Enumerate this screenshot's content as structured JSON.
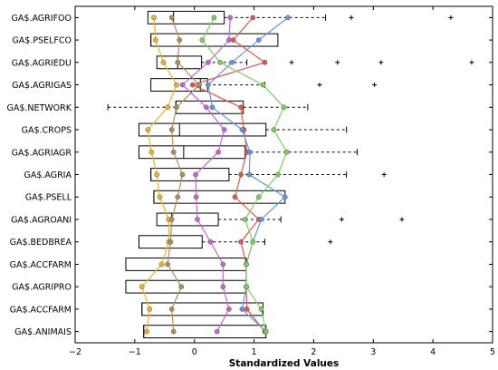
{
  "chart_data": {
    "type": "boxplot",
    "title": "",
    "xlabel": "Standardized Values",
    "ylabel": "",
    "xlim": [
      -2,
      5
    ],
    "xticks": [
      -2,
      -1,
      0,
      1,
      2,
      3,
      4,
      5
    ],
    "grid": false,
    "legend": "none",
    "categories": [
      "GA$.AGRIFOO",
      "GA$.PSELFCO",
      "GA$.AGRIEDU",
      "GA$.AGRIGAS",
      "GA$.NETWORK",
      "GA$.CROPS",
      "GA$.AGRIAGR",
      "GA$.AGRIA",
      "GA$.PSELL",
      "GA$.AGROANI",
      "GA$.BEDBREA",
      "GA$.ACCFARM",
      "GA$.AGRIPRO",
      "GA$.ACCFARM",
      "GA$.ANIMAIS"
    ],
    "boxes": [
      {
        "q1": -0.78,
        "median": -0.35,
        "q3": 0.5,
        "whisker_low": -0.78,
        "whisker_high": 2.2,
        "outliers": [
          2.63,
          4.3
        ]
      },
      {
        "q1": -0.73,
        "median": -0.73,
        "q3": 1.4,
        "whisker_low": -0.73,
        "whisker_high": 1.4,
        "outliers": []
      },
      {
        "q1": -0.63,
        "median": -0.28,
        "q3": 0.12,
        "whisker_low": -0.63,
        "whisker_high": 0.88,
        "outliers": [
          1.63,
          2.4,
          3.13,
          4.65
        ]
      },
      {
        "q1": -0.73,
        "median": 0.1,
        "q3": 0.22,
        "whisker_low": -0.73,
        "whisker_high": 1.18,
        "outliers": [
          2.1,
          3.02
        ]
      },
      {
        "q1": -0.31,
        "median": -0.31,
        "q3": 0.82,
        "whisker_low": -1.45,
        "whisker_high": 1.9,
        "outliers": []
      },
      {
        "q1": -0.93,
        "median": -0.25,
        "q3": 1.2,
        "whisker_low": -0.93,
        "whisker_high": 2.55,
        "outliers": []
      },
      {
        "q1": -0.93,
        "median": -0.18,
        "q3": 0.85,
        "whisker_low": -0.93,
        "whisker_high": 2.73,
        "outliers": []
      },
      {
        "q1": -0.73,
        "median": -0.73,
        "q3": 0.58,
        "whisker_low": -0.73,
        "whisker_high": 2.55,
        "outliers": [
          3.18
        ]
      },
      {
        "q1": -0.68,
        "median": -0.68,
        "q3": 1.52,
        "whisker_low": -0.68,
        "whisker_high": 1.52,
        "outliers": []
      },
      {
        "q1": -0.63,
        "median": -0.38,
        "q3": 0.4,
        "whisker_low": -0.63,
        "whisker_high": 1.45,
        "outliers": [
          2.47,
          3.48
        ]
      },
      {
        "q1": -0.93,
        "median": -0.93,
        "q3": 0.13,
        "whisker_low": -0.93,
        "whisker_high": 1.18,
        "outliers": [
          2.28
        ]
      },
      {
        "q1": -1.15,
        "median": -1.15,
        "q3": 0.87,
        "whisker_low": -1.15,
        "whisker_high": 0.87,
        "outliers": []
      },
      {
        "q1": -1.15,
        "median": -1.15,
        "q3": 0.87,
        "whisker_low": -1.15,
        "whisker_high": 0.87,
        "outliers": []
      },
      {
        "q1": -0.88,
        "median": -0.88,
        "q3": 1.15,
        "whisker_low": -0.88,
        "whisker_high": 1.15,
        "outliers": []
      },
      {
        "q1": -0.85,
        "median": -0.85,
        "q3": 1.2,
        "whisker_low": -0.85,
        "whisker_high": 1.2,
        "outliers": []
      }
    ],
    "series": [
      {
        "color": "#f0b323",
        "values": [
          -0.68,
          -0.65,
          -0.52,
          -0.3,
          -0.45,
          -0.78,
          -0.72,
          -0.63,
          -0.58,
          -0.43,
          -0.43,
          -0.55,
          -0.88,
          -0.75,
          -0.8
        ]
      },
      {
        "color": "#b09050",
        "values": [
          -0.38,
          -0.25,
          -0.28,
          0.08,
          -0.3,
          -0.38,
          -0.35,
          -0.2,
          -0.28,
          -0.38,
          -0.4,
          -0.45,
          -0.22,
          -0.38,
          -0.35
        ]
      },
      {
        "color": "#c864d2",
        "values": [
          0.6,
          0.58,
          0.23,
          -0.2,
          0.2,
          0.5,
          0.4,
          0.02,
          0.03,
          0.05,
          0.27,
          0.48,
          0.48,
          0.58,
          0.38
        ]
      },
      {
        "color": "#e8544a",
        "values": [
          0.98,
          0.65,
          1.18,
          -0.03,
          0.78,
          0.83,
          0.88,
          0.78,
          0.68,
          1.08,
          0.78,
          0.87,
          0.87,
          0.88,
          1.18
        ]
      },
      {
        "color": "#6495ed",
        "values": [
          1.57,
          1.08,
          0.63,
          0.23,
          0.3,
          0.8,
          0.93,
          0.92,
          1.52,
          1.12,
          0.98,
          0.87,
          0.87,
          0.8,
          1.2
        ]
      },
      {
        "color": "#78d25a",
        "values": [
          0.33,
          0.13,
          0.43,
          1.15,
          1.5,
          1.33,
          1.55,
          1.4,
          1.08,
          0.85,
          0.98,
          0.87,
          0.87,
          1.12,
          1.2
        ]
      }
    ]
  }
}
